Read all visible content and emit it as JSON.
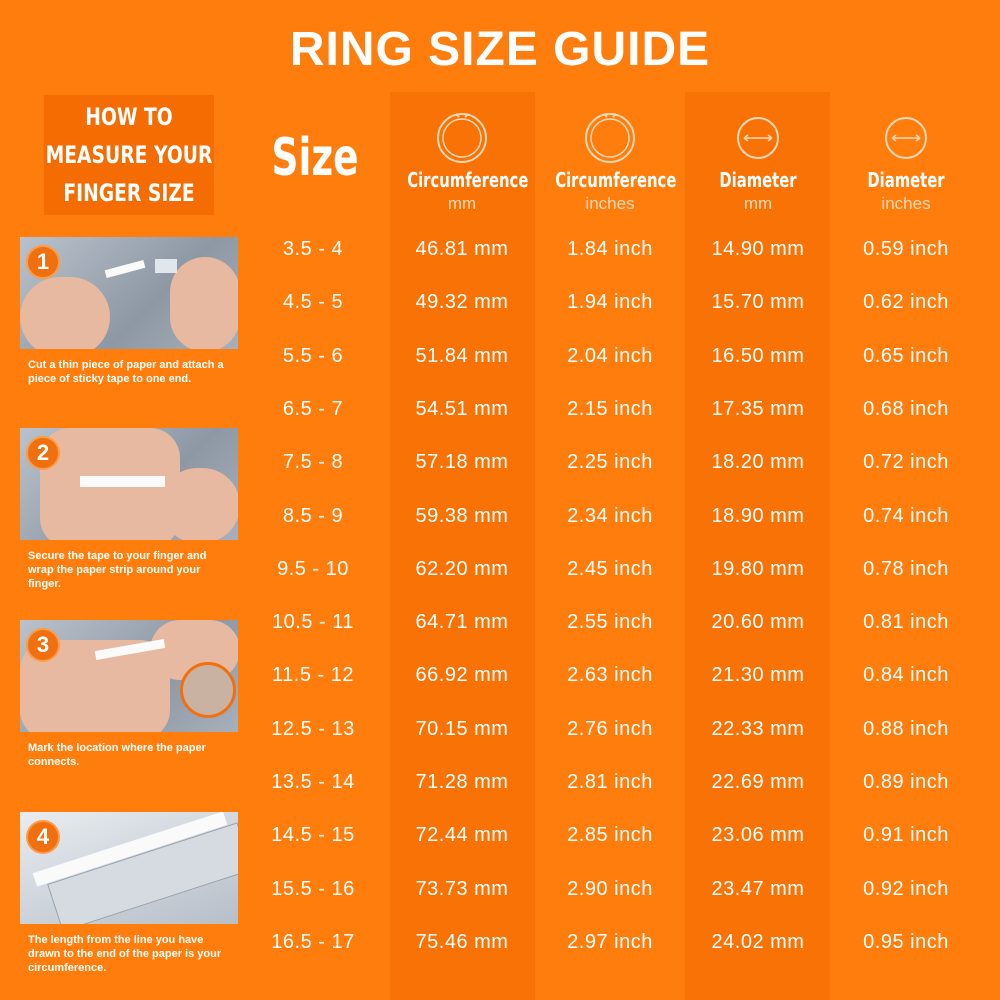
{
  "title": "RING SIZE GUIDE",
  "howto": "HOW TO MEASURE YOUR FINGER SIZE",
  "steps": [
    {
      "number": "1",
      "caption": "Cut a thin piece of paper and attach a piece of sticky tape to one end."
    },
    {
      "number": "2",
      "caption": "Secure the tape to your finger and wrap the paper strip around your finger."
    },
    {
      "number": "3",
      "caption": "Mark the location where the paper connects."
    },
    {
      "number": "4",
      "caption": "The length from the line you have drawn to the end of the paper is your circumference."
    }
  ],
  "headers": {
    "size": "Size",
    "cols": [
      {
        "title": "Circumference",
        "unit": "mm",
        "icon": "ring-icon"
      },
      {
        "title": "Circumference",
        "unit": "inches",
        "icon": "ring-icon"
      },
      {
        "title": "Diameter",
        "unit": "mm",
        "icon": "diameter-icon"
      },
      {
        "title": "Diameter",
        "unit": "inches",
        "icon": "diameter-icon"
      }
    ]
  },
  "rows": [
    [
      "3.5 - 4",
      "46.81 mm",
      "1.84 inch",
      "14.90 mm",
      "0.59 inch"
    ],
    [
      "4.5 - 5",
      "49.32 mm",
      "1.94 inch",
      "15.70 mm",
      "0.62 inch"
    ],
    [
      "5.5 - 6",
      "51.84 mm",
      "2.04 inch",
      "16.50 mm",
      "0.65 inch"
    ],
    [
      "6.5 - 7",
      "54.51 mm",
      "2.15 inch",
      "17.35 mm",
      "0.68 inch"
    ],
    [
      "7.5 - 8",
      "57.18 mm",
      "2.25 inch",
      "18.20 mm",
      "0.72 inch"
    ],
    [
      "8.5 - 9",
      "59.38 mm",
      "2.34 inch",
      "18.90 mm",
      "0.74 inch"
    ],
    [
      "9.5 - 10",
      "62.20 mm",
      "2.45 inch",
      "19.80 mm",
      "0.78 inch"
    ],
    [
      "10.5 - 11",
      "64.71 mm",
      "2.55 inch",
      "20.60 mm",
      "0.81 inch"
    ],
    [
      "11.5 - 12",
      "66.92 mm",
      "2.63 inch",
      "21.30 mm",
      "0.84 inch"
    ],
    [
      "12.5 - 13",
      "70.15 mm",
      "2.76 inch",
      "22.33 mm",
      "0.88 inch"
    ],
    [
      "13.5 - 14",
      "71.28 mm",
      "2.81 inch",
      "22.69 mm",
      "0.89 inch"
    ],
    [
      "14.5 - 15",
      "72.44 mm",
      "2.85 inch",
      "23.06 mm",
      "0.91 inch"
    ],
    [
      "15.5 - 16",
      "73.73 mm",
      "2.90 inch",
      "23.47 mm",
      "0.92 inch"
    ],
    [
      "16.5 - 17",
      "75.46 mm",
      "2.97 inch",
      "24.02 mm",
      "0.95 inch"
    ]
  ]
}
